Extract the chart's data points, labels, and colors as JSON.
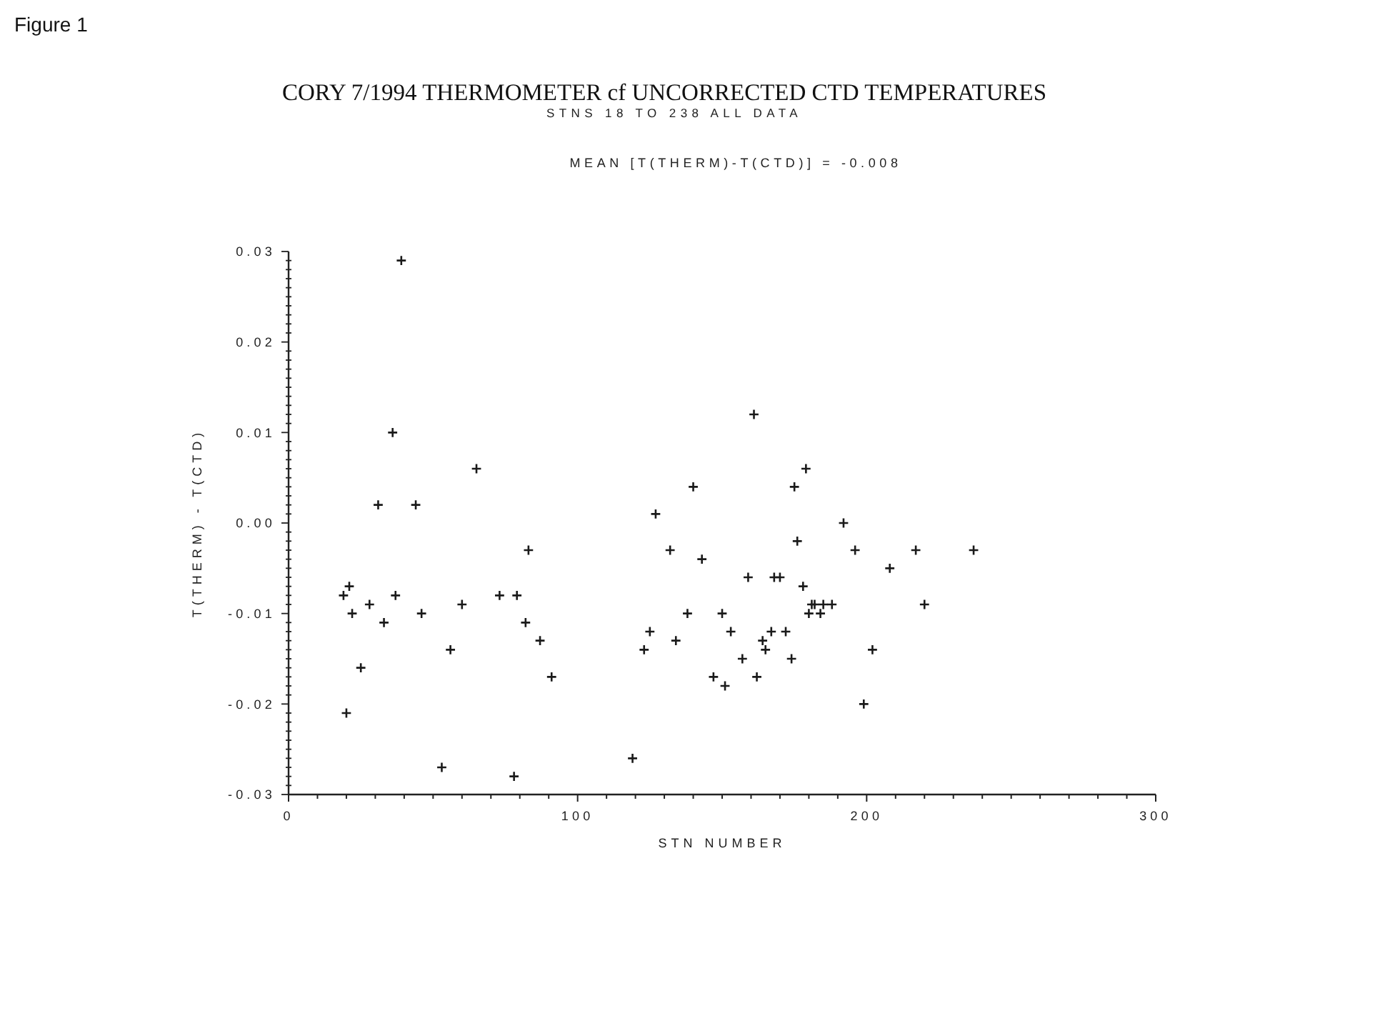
{
  "chart_data": {
    "type": "scatter",
    "title": "CORY 7/1994 THERMOMETER cf UNCORRECTED CTD TEMPERATURES",
    "subtitle": "STNS 18 TO 238 ALL DATA",
    "annotations": [
      "Figure 1",
      "MEAN [T(THERM)-T(CTD)] = -0.008"
    ],
    "xlabel": "STN NUMBER",
    "ylabel": "T(THERM) - T(CTD)",
    "marker": "cross",
    "grid": false,
    "xlim": [
      0,
      300
    ],
    "ylim": [
      -0.03,
      0.03
    ],
    "xticks": [
      0,
      {
        "value": 10,
        "label": null
      },
      {
        "value": 20,
        "label": null
      },
      {
        "value": 30,
        "label": null
      },
      {
        "value": 40,
        "label": null
      },
      {
        "value": 50,
        "label": null
      },
      {
        "value": 60,
        "label": null
      },
      {
        "value": 70,
        "label": null
      },
      {
        "value": 80,
        "label": null
      },
      {
        "value": 90,
        "label": null
      },
      100,
      {
        "value": 110,
        "label": null
      },
      {
        "value": 120,
        "label": null
      },
      {
        "value": 130,
        "label": null
      },
      {
        "value": 140,
        "label": null
      },
      {
        "value": 150,
        "label": null
      },
      {
        "value": 160,
        "label": null
      },
      {
        "value": 170,
        "label": null
      },
      {
        "value": 180,
        "label": null
      },
      {
        "value": 190,
        "label": null
      },
      200,
      {
        "value": 210,
        "label": null
      },
      {
        "value": 220,
        "label": null
      },
      {
        "value": 230,
        "label": null
      },
      {
        "value": 240,
        "label": null
      },
      {
        "value": 250,
        "label": null
      },
      {
        "value": 260,
        "label": null
      },
      {
        "value": 270,
        "label": null
      },
      {
        "value": 280,
        "label": null
      },
      {
        "value": 290,
        "label": null
      },
      300
    ],
    "yticks": [
      -0.03,
      {
        "value": -0.029,
        "label": null
      },
      {
        "value": -0.028,
        "label": null
      },
      {
        "value": -0.027,
        "label": null
      },
      {
        "value": -0.026,
        "label": null
      },
      {
        "value": -0.025,
        "label": null
      },
      {
        "value": -0.024,
        "label": null
      },
      {
        "value": -0.023,
        "label": null
      },
      {
        "value": -0.022,
        "label": null
      },
      {
        "value": -0.021,
        "label": null
      },
      -0.02,
      {
        "value": -0.019,
        "label": null
      },
      {
        "value": -0.018,
        "label": null
      },
      {
        "value": -0.017,
        "label": null
      },
      {
        "value": -0.016,
        "label": null
      },
      {
        "value": -0.015,
        "label": null
      },
      {
        "value": -0.014,
        "label": null
      },
      {
        "value": -0.013,
        "label": null
      },
      {
        "value": -0.012,
        "label": null
      },
      {
        "value": -0.011,
        "label": null
      },
      -0.01,
      {
        "value": -0.009,
        "label": null
      },
      {
        "value": -0.008,
        "label": null
      },
      {
        "value": -0.007,
        "label": null
      },
      {
        "value": -0.006,
        "label": null
      },
      {
        "value": -0.005,
        "label": null
      },
      {
        "value": -0.004,
        "label": null
      },
      {
        "value": -0.003,
        "label": null
      },
      {
        "value": -0.002,
        "label": null
      },
      {
        "value": -0.001,
        "label": null
      },
      {
        "value": 0,
        "label": "0.00"
      },
      {
        "value": 0.001,
        "label": null
      },
      {
        "value": 0.002,
        "label": null
      },
      {
        "value": 0.003,
        "label": null
      },
      {
        "value": 0.004,
        "label": null
      },
      {
        "value": 0.005,
        "label": null
      },
      {
        "value": 0.006,
        "label": null
      },
      {
        "value": 0.007,
        "label": null
      },
      {
        "value": 0.008,
        "label": null
      },
      {
        "value": 0.009,
        "label": null
      },
      0.01,
      {
        "value": 0.011,
        "label": null
      },
      {
        "value": 0.012,
        "label": null
      },
      {
        "value": 0.013,
        "label": null
      },
      {
        "value": 0.014,
        "label": null
      },
      {
        "value": 0.015,
        "label": null
      },
      {
        "value": 0.016,
        "label": null
      },
      {
        "value": 0.017,
        "label": null
      },
      {
        "value": 0.018,
        "label": null
      },
      {
        "value": 0.019,
        "label": null
      },
      0.02,
      {
        "value": 0.021,
        "label": null
      },
      {
        "value": 0.022,
        "label": null
      },
      {
        "value": 0.023,
        "label": null
      },
      {
        "value": 0.024,
        "label": null
      },
      {
        "value": 0.025,
        "label": null
      },
      {
        "value": 0.026,
        "label": null
      },
      {
        "value": 0.027,
        "label": null
      },
      {
        "value": 0.028,
        "label": null
      },
      {
        "value": 0.029,
        "label": null
      },
      0.03
    ],
    "series": [
      {
        "color": "#1a1a1a",
        "x": [
          19,
          20,
          21,
          22,
          25,
          28,
          31,
          33,
          36,
          37,
          39,
          44,
          46,
          53,
          56,
          60,
          65,
          73,
          78,
          79,
          82,
          83,
          87,
          91,
          119,
          123,
          125,
          127,
          132,
          134,
          138,
          140,
          143,
          147,
          150,
          151,
          153,
          157,
          159,
          161,
          162,
          164,
          165,
          167,
          168,
          170,
          172,
          174,
          175,
          176,
          178,
          179,
          180,
          181,
          182,
          184,
          185,
          188,
          192,
          196,
          199,
          202,
          208,
          217,
          220,
          237
        ],
        "values": [
          -0.008,
          -0.021,
          -0.007,
          -0.01,
          -0.016,
          -0.009,
          0.002,
          -0.011,
          0.01,
          -0.008,
          0.029,
          0.002,
          -0.01,
          -0.027,
          -0.014,
          -0.009,
          0.006,
          -0.008,
          -0.028,
          -0.008,
          -0.011,
          -0.003,
          -0.013,
          -0.017,
          -0.026,
          -0.014,
          -0.012,
          0.001,
          -0.003,
          -0.013,
          -0.01,
          0.004,
          -0.004,
          -0.017,
          -0.01,
          -0.018,
          -0.012,
          -0.015,
          -0.006,
          0.012,
          -0.017,
          -0.013,
          -0.014,
          -0.012,
          -0.006,
          -0.006,
          -0.012,
          -0.015,
          0.004,
          -0.002,
          -0.007,
          0.006,
          -0.01,
          -0.009,
          -0.009,
          -0.01,
          -0.009,
          -0.009,
          0.0,
          -0.003,
          -0.02,
          -0.014,
          -0.005,
          -0.003,
          -0.009,
          -0.003
        ]
      }
    ]
  }
}
